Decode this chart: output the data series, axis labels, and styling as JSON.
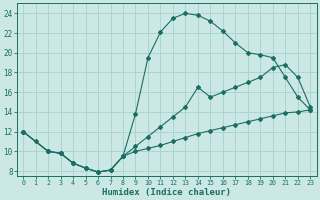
{
  "xlabel": "Humidex (Indice chaleur)",
  "bg_color": "#cce8e4",
  "grid_color": "#9ecece",
  "line_color": "#1a6e64",
  "xlim": [
    -0.5,
    23.5
  ],
  "ylim": [
    7.5,
    25.0
  ],
  "xticks": [
    0,
    1,
    2,
    3,
    4,
    5,
    6,
    7,
    8,
    9,
    10,
    11,
    12,
    13,
    14,
    15,
    16,
    17,
    18,
    19,
    20,
    21,
    22,
    23
  ],
  "yticks": [
    8,
    10,
    12,
    14,
    16,
    18,
    20,
    22,
    24
  ],
  "line1_x": [
    0,
    1,
    2,
    3,
    4,
    5,
    6,
    7,
    8,
    9,
    10,
    11,
    12,
    13,
    14,
    15,
    16,
    17,
    18,
    19,
    20,
    21,
    22,
    23
  ],
  "line1_y": [
    12,
    11,
    10,
    9.8,
    8.8,
    8.3,
    7.9,
    8.1,
    9.5,
    13.8,
    19.5,
    22.1,
    23.5,
    24.0,
    23.8,
    23.2,
    22.2,
    21.0,
    20.0,
    19.8,
    19.5,
    17.5,
    15.5,
    14.2
  ],
  "line2_x": [
    0,
    2,
    3,
    4,
    5,
    6,
    7,
    8,
    9,
    10,
    11,
    12,
    13,
    14,
    15,
    16,
    17,
    18,
    19,
    20,
    21,
    22,
    23
  ],
  "line2_y": [
    12,
    10,
    9.8,
    8.8,
    8.3,
    7.9,
    8.1,
    9.5,
    10.5,
    11.5,
    12.5,
    13.5,
    14.5,
    16.5,
    15.5,
    16.0,
    16.5,
    17.0,
    17.5,
    18.5,
    18.8,
    17.5,
    14.5
  ],
  "line3_x": [
    0,
    2,
    3,
    4,
    5,
    6,
    7,
    8,
    9,
    10,
    11,
    12,
    13,
    14,
    15,
    16,
    17,
    18,
    19,
    20,
    21,
    22,
    23
  ],
  "line3_y": [
    12,
    10,
    9.8,
    8.8,
    8.3,
    7.9,
    8.1,
    9.5,
    10.0,
    10.3,
    10.6,
    11.0,
    11.4,
    11.8,
    12.1,
    12.4,
    12.7,
    13.0,
    13.3,
    13.6,
    13.9,
    14.0,
    14.2
  ]
}
